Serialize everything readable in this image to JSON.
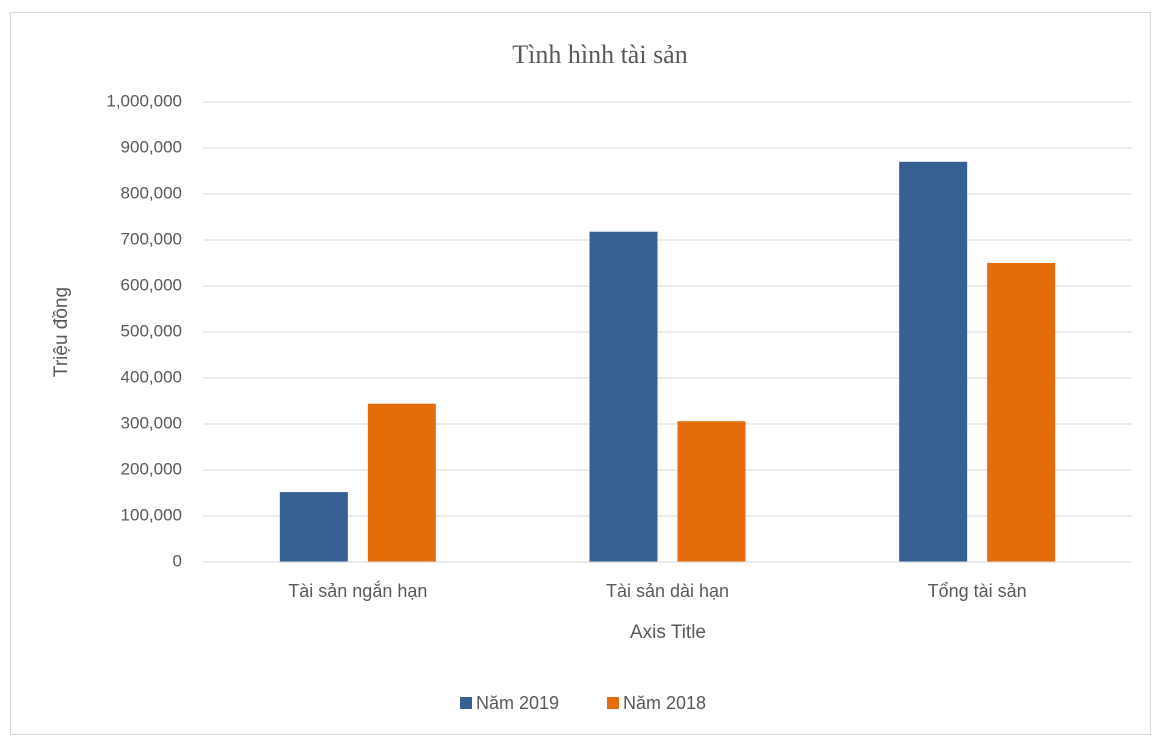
{
  "chart_data": {
    "type": "bar",
    "title": "Tình hình tài sản",
    "y_axis_title": "Triệu đồng",
    "x_axis_title": "Axis Title",
    "categories": [
      "Tài sản ngắn hạn",
      "Tài sản dài hạn",
      "Tổng tài sản"
    ],
    "series": [
      {
        "name": "Năm 2019",
        "color": "#365f92",
        "values": [
          152000,
          718000,
          870000
        ]
      },
      {
        "name": "Năm 2018",
        "color": "#e46c0a",
        "values": [
          344000,
          306000,
          650000
        ]
      }
    ],
    "ylim": [
      0,
      1000000
    ],
    "yticks": [
      0,
      {
        "value": 100000,
        "label": "100,000"
      },
      {
        "value": 200000,
        "label": "200,000"
      },
      {
        "value": 300000,
        "label": "300,000"
      },
      {
        "value": 400000,
        "label": "400,000"
      },
      {
        "value": 500000,
        "label": "500,000"
      },
      {
        "value": 600000,
        "label": "600,000"
      },
      {
        "value": 700000,
        "label": "700,000"
      },
      {
        "value": 800000,
        "label": "800,000"
      },
      {
        "value": 900000,
        "label": "900,000"
      },
      {
        "value": 1000000,
        "label": "1,000,000"
      }
    ],
    "grid": true,
    "legend": "bottom"
  }
}
